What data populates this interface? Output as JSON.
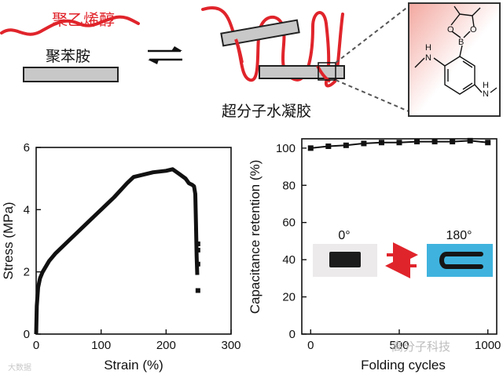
{
  "top": {
    "pva_label": "聚乙烯醇",
    "pani_label": "聚苯胺",
    "hydrogel_label": "超分子水凝胶",
    "colors": {
      "pva": "#e0242b",
      "rod_fill": "#c8c8c8",
      "rod_stroke": "#222222",
      "inset_bg_top": "#f3a79f",
      "inset_bg_bottom": "#ffffff"
    }
  },
  "inset_molecule": {
    "atoms": {
      "o1": "O",
      "o2": "O",
      "b": "B",
      "h1": "H",
      "n1": "N",
      "h2": "H",
      "n2": "N"
    }
  },
  "stress_chart": {
    "x_tick_labels": [
      "0",
      "100",
      "200",
      "300"
    ],
    "y_tick_labels": [
      "0",
      "2",
      "4",
      "6"
    ]
  },
  "retention_chart": {
    "x_tick_labels": [
      "0",
      "500",
      "1000"
    ],
    "y_tick_labels": [
      "0",
      "20",
      "40",
      "60",
      "80",
      "100"
    ],
    "photo_labels": {
      "left": "0°",
      "right": "180°"
    }
  },
  "watermarks": {
    "right": "高分子科技",
    "left": "大数据"
  },
  "chart_data": [
    {
      "type": "line",
      "xlabel": "Strain (%)",
      "ylabel": "Stress (MPa)",
      "xlim": [
        0,
        300
      ],
      "ylim": [
        0,
        6
      ],
      "grid": false,
      "series": [
        {
          "x": [
            0,
            1,
            3,
            6,
            10,
            20,
            30,
            50,
            80,
            100,
            120,
            140,
            150,
            160,
            180,
            200,
            210,
            220,
            230,
            235,
            240,
            243,
            245,
            246,
            247,
            248
          ],
          "y": [
            0,
            0.9,
            1.5,
            1.8,
            2.0,
            2.35,
            2.6,
            3.0,
            3.6,
            4.0,
            4.4,
            4.85,
            5.05,
            5.1,
            5.2,
            5.25,
            5.3,
            5.15,
            5.0,
            4.85,
            4.8,
            4.75,
            4.5,
            3.5,
            2.5,
            1.9
          ]
        },
        {
          "x": [
            249,
            249,
            249,
            249
          ],
          "y": [
            2.9,
            2.7,
            2.25,
            1.4
          ]
        }
      ]
    },
    {
      "type": "line",
      "xlabel": "Folding cycles",
      "ylabel": "Capacitance retention (%)",
      "xlim": [
        -50,
        1050
      ],
      "ylim": [
        0,
        105
      ],
      "grid": false,
      "series": [
        {
          "x": [
            0,
            100,
            200,
            300,
            400,
            500,
            600,
            700,
            800,
            900,
            1000
          ],
          "y": [
            100,
            101,
            101.5,
            102.5,
            103,
            103,
            103.5,
            103.5,
            103.5,
            104,
            103
          ]
        }
      ]
    }
  ]
}
